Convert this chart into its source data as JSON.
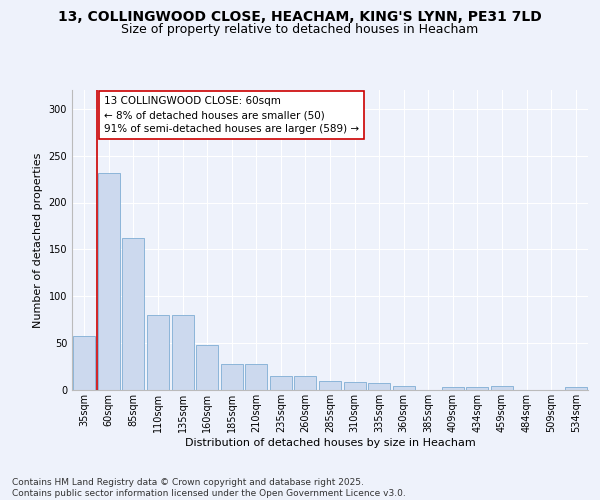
{
  "title_line1": "13, COLLINGWOOD CLOSE, HEACHAM, KING'S LYNN, PE31 7LD",
  "title_line2": "Size of property relative to detached houses in Heacham",
  "xlabel": "Distribution of detached houses by size in Heacham",
  "ylabel": "Number of detached properties",
  "categories": [
    "35sqm",
    "60sqm",
    "85sqm",
    "110sqm",
    "135sqm",
    "160sqm",
    "185sqm",
    "210sqm",
    "235sqm",
    "260sqm",
    "285sqm",
    "310sqm",
    "335sqm",
    "360sqm",
    "385sqm",
    "409sqm",
    "434sqm",
    "459sqm",
    "484sqm",
    "509sqm",
    "534sqm"
  ],
  "values": [
    58,
    232,
    162,
    80,
    80,
    48,
    28,
    28,
    15,
    15,
    10,
    9,
    8,
    4,
    0,
    3,
    3,
    4,
    0,
    0,
    3
  ],
  "bar_color": "#ccd9ee",
  "bar_edge_color": "#7fadd4",
  "highlight_index": 1,
  "highlight_line_color": "#cc0000",
  "annotation_text": "13 COLLINGWOOD CLOSE: 60sqm\n← 8% of detached houses are smaller (50)\n91% of semi-detached houses are larger (589) →",
  "annotation_box_color": "#ffffff",
  "annotation_box_edge_color": "#cc0000",
  "ylim": [
    0,
    320
  ],
  "yticks": [
    0,
    50,
    100,
    150,
    200,
    250,
    300
  ],
  "background_color": "#eef2fb",
  "grid_color": "#ffffff",
  "footer_line1": "Contains HM Land Registry data © Crown copyright and database right 2025.",
  "footer_line2": "Contains public sector information licensed under the Open Government Licence v3.0.",
  "title_fontsize": 10,
  "subtitle_fontsize": 9,
  "axis_label_fontsize": 8,
  "tick_fontsize": 7,
  "annotation_fontsize": 7.5,
  "footer_fontsize": 6.5
}
